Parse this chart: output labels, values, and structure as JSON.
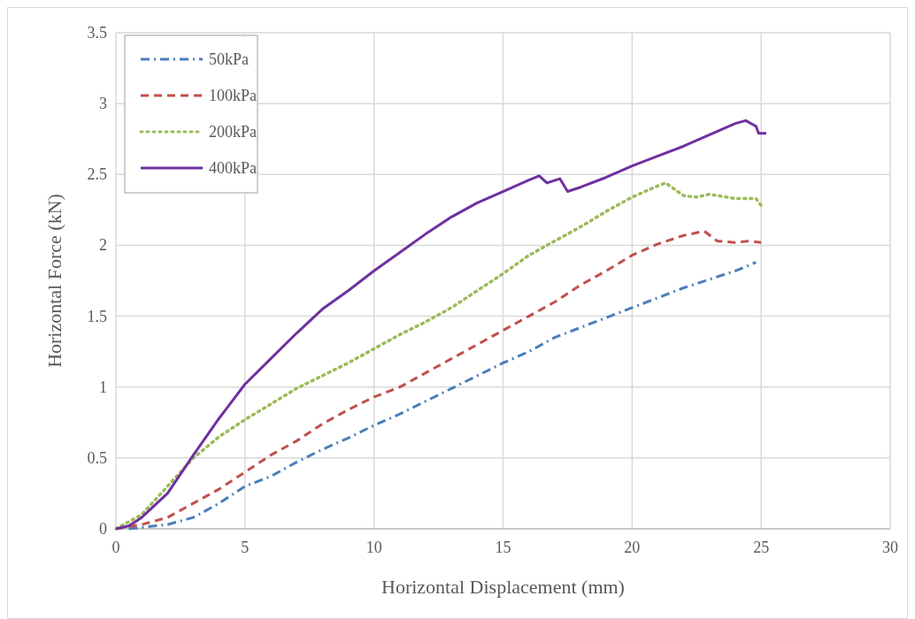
{
  "chart_data": {
    "type": "line",
    "xlabel": "Horizontal Displacement (mm)",
    "ylabel": "Horizontal Force (kN)",
    "xlim": [
      0,
      30
    ],
    "xticks": [
      0,
      5,
      10,
      15,
      20,
      25,
      30
    ],
    "ylim": [
      0,
      3.5
    ],
    "yticks": [
      0,
      0.5,
      1,
      1.5,
      2,
      2.5,
      3,
      3.5
    ],
    "grid": true,
    "legend": "top left",
    "series": [
      {
        "name": "50kPa",
        "color": "#4a7ebb",
        "line_style": "dashdot",
        "x": [
          0.5,
          1.5,
          2,
          3,
          4,
          5,
          6,
          7,
          8,
          9,
          10,
          11,
          12,
          13,
          14,
          15,
          16,
          17,
          18,
          19,
          20,
          21,
          22,
          22.5,
          23,
          24,
          24.8
        ],
        "values": [
          0,
          0.02,
          0.03,
          0.08,
          0.18,
          0.3,
          0.37,
          0.47,
          0.56,
          0.64,
          0.73,
          0.81,
          0.9,
          0.99,
          1.08,
          1.17,
          1.25,
          1.35,
          1.42,
          1.49,
          1.56,
          1.63,
          1.7,
          1.73,
          1.76,
          1.82,
          1.88
        ]
      },
      {
        "name": "100kPa",
        "color": "#c0504d",
        "line_style": "dashed",
        "x": [
          0,
          1,
          2,
          3,
          4,
          5,
          6,
          7,
          8,
          9,
          10,
          11,
          12,
          13,
          14,
          15,
          16,
          17,
          18,
          19,
          20,
          21,
          22,
          22.8,
          23.3,
          24,
          24.5,
          25
        ],
        "values": [
          0,
          0.03,
          0.08,
          0.18,
          0.28,
          0.4,
          0.52,
          0.62,
          0.74,
          0.84,
          0.93,
          1.0,
          1.1,
          1.2,
          1.3,
          1.4,
          1.5,
          1.6,
          1.72,
          1.82,
          1.93,
          2.01,
          2.07,
          2.1,
          2.03,
          2.02,
          2.03,
          2.02
        ]
      },
      {
        "name": "200kPa",
        "color": "#9bbb59",
        "line_style": "dotted",
        "x": [
          0,
          1,
          2,
          3,
          4,
          5,
          6,
          7,
          8,
          9,
          10,
          11,
          12,
          13,
          14,
          15,
          16,
          17,
          18,
          19,
          20,
          21,
          21.3,
          22,
          22.5,
          23,
          24,
          24.8,
          25
        ],
        "values": [
          0,
          0.1,
          0.3,
          0.5,
          0.65,
          0.77,
          0.88,
          0.99,
          1.08,
          1.17,
          1.27,
          1.37,
          1.46,
          1.56,
          1.68,
          1.8,
          1.93,
          2.03,
          2.13,
          2.24,
          2.34,
          2.42,
          2.44,
          2.35,
          2.34,
          2.36,
          2.33,
          2.33,
          2.28
        ]
      },
      {
        "name": "400kPa",
        "color": "#7030a0",
        "line_style": "solid",
        "x": [
          0,
          0.5,
          1,
          2,
          3,
          4,
          5,
          6,
          7,
          8,
          9,
          10,
          11,
          12,
          13,
          14,
          15,
          16,
          16.4,
          16.7,
          17.2,
          17.5,
          18,
          19,
          20,
          21,
          22,
          23,
          24,
          24.4,
          24.8,
          24.9,
          25.2
        ],
        "values": [
          0,
          0.02,
          0.08,
          0.25,
          0.52,
          0.78,
          1.02,
          1.2,
          1.38,
          1.55,
          1.68,
          1.82,
          1.95,
          2.08,
          2.2,
          2.3,
          2.38,
          2.46,
          2.49,
          2.44,
          2.47,
          2.38,
          2.41,
          2.48,
          2.56,
          2.63,
          2.7,
          2.78,
          2.86,
          2.88,
          2.84,
          2.79,
          2.79
        ]
      }
    ]
  }
}
